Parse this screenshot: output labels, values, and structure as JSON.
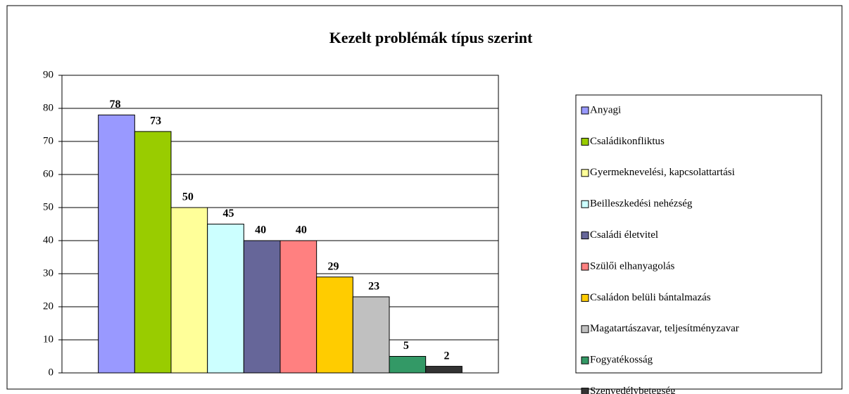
{
  "chart_data": {
    "type": "bar",
    "title": "Kezelt problémák típus szerint",
    "series": [
      {
        "name": "Anyagi",
        "color": "#9999ff",
        "values": [
          78
        ]
      },
      {
        "name": "Családikonfliktus",
        "color": "#99cc00",
        "values": [
          73
        ]
      },
      {
        "name": "Gyermeknevelési, kapcsolattartási",
        "color": "#ffff99",
        "values": [
          50
        ]
      },
      {
        "name": "Beilleszkedési nehézség",
        "color": "#ccffff",
        "values": [
          45
        ]
      },
      {
        "name": "Családi életvitel",
        "color": "#666699",
        "values": [
          40
        ]
      },
      {
        "name": "Szülői elhanyagolás",
        "color": "#ff8080",
        "values": [
          40
        ]
      },
      {
        "name": "Családon belüli bántalmazás",
        "color": "#ffcc00",
        "values": [
          29
        ]
      },
      {
        "name": "Magatartászavar, teljesítményzavar",
        "color": "#c0c0c0",
        "values": [
          23
        ]
      },
      {
        "name": "Fogyatékosság",
        "color": "#339966",
        "values": [
          5
        ]
      },
      {
        "name": "Szenvedélybetegség",
        "color": "#333333",
        "values": [
          2
        ]
      }
    ],
    "ylim": [
      0,
      90
    ],
    "yticks": [
      0,
      10,
      20,
      30,
      40,
      50,
      60,
      70,
      80,
      90
    ],
    "grid": true,
    "legend": "right"
  }
}
